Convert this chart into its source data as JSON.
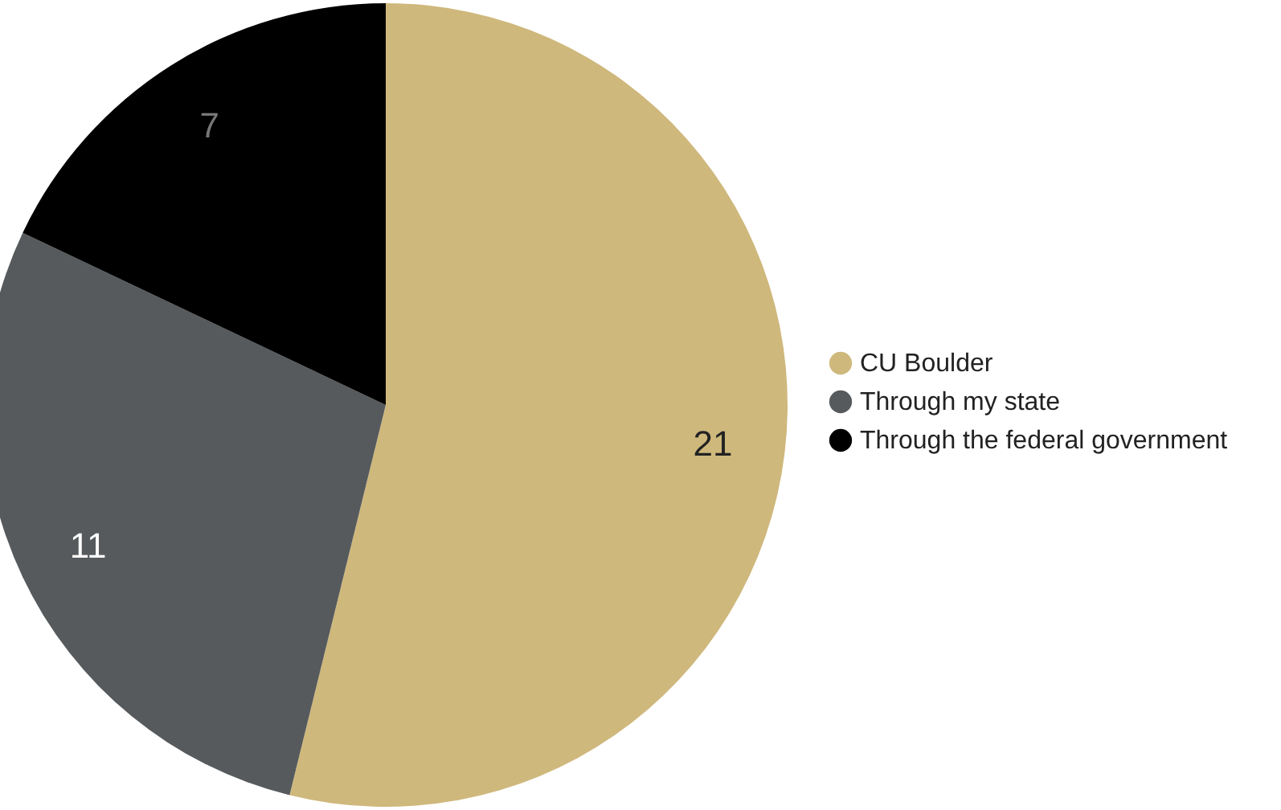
{
  "chart_data": {
    "type": "pie",
    "categories": [
      "CU Boulder",
      "Through my state",
      "Through the federal government"
    ],
    "values": [
      21,
      11,
      7
    ],
    "colors": [
      "#cfb87c",
      "#565a5c",
      "#000000"
    ],
    "data_labels": true,
    "legend": "right"
  }
}
